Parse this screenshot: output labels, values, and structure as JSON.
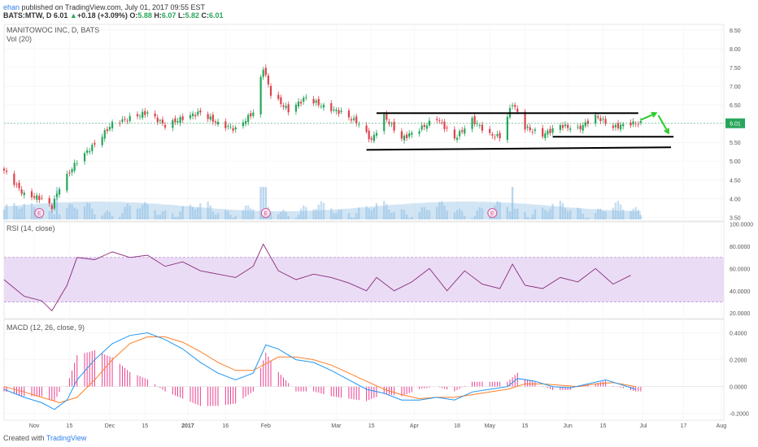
{
  "header": {
    "author": "ehan",
    "published": "published on TradingView.com, July 01, 2017 09:55 EST",
    "symbol": "BATS:MTW, D",
    "last": "6.01",
    "change": "+0.18 (+3.09%)",
    "o_label": "O:",
    "o": "5.88",
    "h_label": "H:",
    "h": "6.07",
    "l_label": "L:",
    "l": "5.82",
    "c_label": "C:",
    "c": "6.01",
    "up_arrow": "▲"
  },
  "footer": {
    "created_with": "Created with",
    "brand": "TradingView"
  },
  "colors": {
    "up_candle": "#26a65b",
    "down_candle": "#e0414b",
    "volume": "#7fb5e0",
    "rsi_line": "#8a2c7b",
    "rsi_band": "#eadcf5",
    "macd_line": "#2196f3",
    "signal_line": "#ff7f27",
    "histogram": "#e93f8f",
    "trendline": "#000000",
    "arrow": "#29cc29",
    "price_label_bg": "#26a65b"
  },
  "chart_data": [
    {
      "type": "candlestick",
      "title": "MANITOWOC INC, D, BATS",
      "volume_label": "Vol (20)",
      "ylim": [
        3.4,
        8.65
      ],
      "y_ticks": [
        "3.50",
        "4.00",
        "4.50",
        "5.00",
        "5.50",
        "6.00",
        "6.50",
        "7.00",
        "7.50",
        "8.00",
        "8.50"
      ],
      "last_price_label": "6.01",
      "earnings_markers": [
        "E",
        "E",
        "E"
      ],
      "x_ticks": [
        "Nov",
        "15",
        "Dec",
        "15",
        "2017",
        "16",
        "Feb",
        "Mar",
        "15",
        "Apr",
        "18",
        "May",
        "15",
        "Jun",
        "15",
        "Jul",
        "17",
        "Aug"
      ],
      "price_path": [
        [
          "2016-10-20",
          4.75
        ],
        [
          "2016-10-28",
          4.1
        ],
        [
          "2016-11-04",
          4.0
        ],
        [
          "2016-11-08",
          3.78
        ],
        [
          "2016-11-11",
          4.3
        ],
        [
          "2016-11-18",
          5.0
        ],
        [
          "2016-11-25",
          5.45
        ],
        [
          "2016-12-02",
          6.0
        ],
        [
          "2016-12-09",
          6.15
        ],
        [
          "2016-12-16",
          6.3
        ],
        [
          "2016-12-23",
          5.95
        ],
        [
          "2016-12-30",
          6.15
        ],
        [
          "2017-01-06",
          6.3
        ],
        [
          "2017-01-13",
          6.0
        ],
        [
          "2017-01-20",
          5.85
        ],
        [
          "2017-01-27",
          6.3
        ],
        [
          "2017-01-31",
          7.5
        ],
        [
          "2017-02-03",
          6.8
        ],
        [
          "2017-02-10",
          6.35
        ],
        [
          "2017-02-17",
          6.7
        ],
        [
          "2017-02-24",
          6.45
        ],
        [
          "2017-03-03",
          6.3
        ],
        [
          "2017-03-10",
          6.0
        ],
        [
          "2017-03-15",
          5.55
        ],
        [
          "2017-03-20",
          6.2
        ],
        [
          "2017-03-27",
          5.6
        ],
        [
          "2017-04-03",
          5.85
        ],
        [
          "2017-04-10",
          6.15
        ],
        [
          "2017-04-17",
          5.6
        ],
        [
          "2017-04-24",
          6.1
        ],
        [
          "2017-05-01",
          5.7
        ],
        [
          "2017-05-05",
          5.65
        ],
        [
          "2017-05-10",
          6.55
        ],
        [
          "2017-05-15",
          5.9
        ],
        [
          "2017-05-22",
          5.7
        ],
        [
          "2017-05-29",
          5.95
        ],
        [
          "2017-06-05",
          5.85
        ],
        [
          "2017-06-12",
          6.2
        ],
        [
          "2017-06-19",
          5.9
        ],
        [
          "2017-06-26",
          6.01
        ]
      ],
      "volume_spike_dates": [
        "2016-11-10",
        "2017-01-30",
        "2017-01-31",
        "2017-02-01",
        "2017-05-10"
      ],
      "annotations": {
        "resistance": [
          [
            "2017-03-17",
            6.28
          ],
          [
            "2017-06-29",
            6.28
          ]
        ],
        "support_upper": [
          [
            "2017-05-26",
            5.65
          ],
          [
            "2017-07-13",
            5.65
          ]
        ],
        "support_lower": [
          [
            "2017-03-13",
            5.3
          ],
          [
            "2017-07-12",
            5.37
          ]
        ],
        "arrow_up": [
          [
            "2017-06-30",
            6.1
          ],
          [
            "2017-07-06",
            6.28
          ]
        ],
        "arrow_down": [
          [
            "2017-07-07",
            6.22
          ],
          [
            "2017-07-11",
            5.75
          ]
        ]
      }
    },
    {
      "type": "line",
      "title": "RSI (14, close)",
      "ylim": [
        15,
        102
      ],
      "y_ticks": [
        "100.0000",
        "80.0000",
        "60.0000",
        "40.0000",
        "20.0000"
      ],
      "band": [
        30,
        70
      ],
      "path": [
        [
          "2016-10-20",
          50
        ],
        [
          "2016-10-28",
          35
        ],
        [
          "2016-11-04",
          31
        ],
        [
          "2016-11-08",
          22
        ],
        [
          "2016-11-14",
          45
        ],
        [
          "2016-11-18",
          70
        ],
        [
          "2016-11-25",
          68
        ],
        [
          "2016-12-02",
          75
        ],
        [
          "2016-12-09",
          70
        ],
        [
          "2016-12-16",
          72
        ],
        [
          "2016-12-23",
          62
        ],
        [
          "2016-12-30",
          66
        ],
        [
          "2017-01-06",
          58
        ],
        [
          "2017-01-13",
          55
        ],
        [
          "2017-01-20",
          52
        ],
        [
          "2017-01-27",
          62
        ],
        [
          "2017-01-31",
          82
        ],
        [
          "2017-02-06",
          58
        ],
        [
          "2017-02-13",
          50
        ],
        [
          "2017-02-20",
          55
        ],
        [
          "2017-02-27",
          52
        ],
        [
          "2017-03-06",
          47
        ],
        [
          "2017-03-13",
          40
        ],
        [
          "2017-03-17",
          52
        ],
        [
          "2017-03-24",
          40
        ],
        [
          "2017-03-31",
          48
        ],
        [
          "2017-04-07",
          60
        ],
        [
          "2017-04-14",
          40
        ],
        [
          "2017-04-21",
          58
        ],
        [
          "2017-04-28",
          46
        ],
        [
          "2017-05-05",
          42
        ],
        [
          "2017-05-10",
          64
        ],
        [
          "2017-05-15",
          45
        ],
        [
          "2017-05-22",
          42
        ],
        [
          "2017-05-29",
          52
        ],
        [
          "2017-06-05",
          48
        ],
        [
          "2017-06-12",
          60
        ],
        [
          "2017-06-19",
          46
        ],
        [
          "2017-06-26",
          54
        ]
      ]
    },
    {
      "type": "line",
      "title": "MACD (12, 26, close, 9)",
      "ylim": [
        -0.25,
        0.5
      ],
      "y_ticks": [
        "0.4000",
        "0.2000",
        "0.0000",
        "-0.2000"
      ],
      "series": [
        {
          "key": "macd",
          "path": [
            [
              "2016-10-20",
              -0.02
            ],
            [
              "2016-10-28",
              -0.08
            ],
            [
              "2016-11-04",
              -0.12
            ],
            [
              "2016-11-09",
              -0.17
            ],
            [
              "2016-11-14",
              -0.1
            ],
            [
              "2016-11-18",
              0.05
            ],
            [
              "2016-11-25",
              0.2
            ],
            [
              "2016-12-02",
              0.32
            ],
            [
              "2016-12-09",
              0.38
            ],
            [
              "2016-12-16",
              0.4
            ],
            [
              "2016-12-23",
              0.35
            ],
            [
              "2016-12-30",
              0.28
            ],
            [
              "2017-01-06",
              0.18
            ],
            [
              "2017-01-13",
              0.1
            ],
            [
              "2017-01-20",
              0.05
            ],
            [
              "2017-01-27",
              0.1
            ],
            [
              "2017-02-01",
              0.31
            ],
            [
              "2017-02-06",
              0.28
            ],
            [
              "2017-02-13",
              0.2
            ],
            [
              "2017-02-20",
              0.18
            ],
            [
              "2017-02-27",
              0.12
            ],
            [
              "2017-03-06",
              0.05
            ],
            [
              "2017-03-13",
              -0.02
            ],
            [
              "2017-03-20",
              -0.05
            ],
            [
              "2017-03-27",
              -0.1
            ],
            [
              "2017-04-03",
              -0.1
            ],
            [
              "2017-04-10",
              -0.08
            ],
            [
              "2017-04-17",
              -0.1
            ],
            [
              "2017-04-24",
              -0.04
            ],
            [
              "2017-05-01",
              -0.02
            ],
            [
              "2017-05-08",
              0.0
            ],
            [
              "2017-05-12",
              0.06
            ],
            [
              "2017-05-19",
              0.04
            ],
            [
              "2017-05-26",
              0.0
            ],
            [
              "2017-06-02",
              -0.01
            ],
            [
              "2017-06-09",
              0.02
            ],
            [
              "2017-06-16",
              0.05
            ],
            [
              "2017-06-23",
              0.01
            ],
            [
              "2017-06-28",
              -0.02
            ]
          ]
        },
        {
          "key": "signal",
          "path": [
            [
              "2016-10-20",
              0.0
            ],
            [
              "2016-10-28",
              -0.04
            ],
            [
              "2016-11-04",
              -0.08
            ],
            [
              "2016-11-11",
              -0.12
            ],
            [
              "2016-11-18",
              -0.08
            ],
            [
              "2016-11-25",
              0.05
            ],
            [
              "2016-12-02",
              0.2
            ],
            [
              "2016-12-09",
              0.32
            ],
            [
              "2016-12-16",
              0.37
            ],
            [
              "2016-12-23",
              0.37
            ],
            [
              "2016-12-30",
              0.33
            ],
            [
              "2017-01-06",
              0.26
            ],
            [
              "2017-01-13",
              0.18
            ],
            [
              "2017-01-20",
              0.12
            ],
            [
              "2017-01-27",
              0.12
            ],
            [
              "2017-02-06",
              0.22
            ],
            [
              "2017-02-13",
              0.22
            ],
            [
              "2017-02-20",
              0.2
            ],
            [
              "2017-02-27",
              0.16
            ],
            [
              "2017-03-06",
              0.1
            ],
            [
              "2017-03-13",
              0.04
            ],
            [
              "2017-03-20",
              -0.02
            ],
            [
              "2017-03-27",
              -0.06
            ],
            [
              "2017-04-03",
              -0.09
            ],
            [
              "2017-04-10",
              -0.08
            ],
            [
              "2017-04-17",
              -0.08
            ],
            [
              "2017-04-24",
              -0.06
            ],
            [
              "2017-05-01",
              -0.04
            ],
            [
              "2017-05-08",
              -0.02
            ],
            [
              "2017-05-15",
              0.02
            ],
            [
              "2017-05-22",
              0.02
            ],
            [
              "2017-05-29",
              0.01
            ],
            [
              "2017-06-05",
              0.0
            ],
            [
              "2017-06-12",
              0.02
            ],
            [
              "2017-06-19",
              0.03
            ],
            [
              "2017-06-28",
              0.0
            ]
          ]
        }
      ]
    }
  ]
}
